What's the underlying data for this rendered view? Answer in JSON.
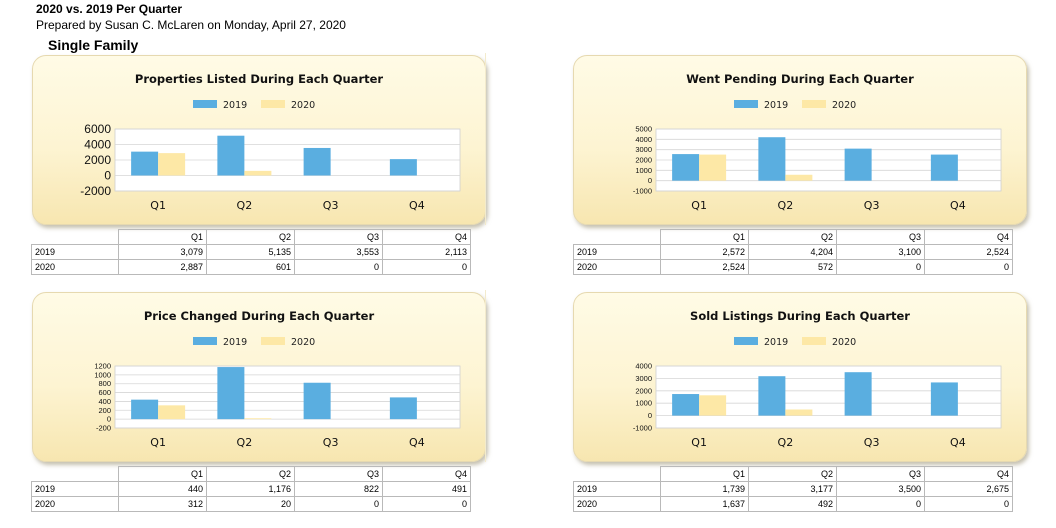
{
  "header": {
    "title": "2020 vs. 2019 Per Quarter",
    "prepared": "Prepared by Susan C. McLaren on Monday, April 27, 2020",
    "section": "Single Family"
  },
  "colors": {
    "series_2019": "#5aaee0",
    "series_2020": "#fde8a6"
  },
  "charts": [
    {
      "chart_data": {
        "type": "bar",
        "title": "Properties Listed During Each Quarter",
        "categories": [
          "Q1",
          "Q2",
          "Q3",
          "Q4"
        ],
        "series": [
          {
            "name": "2019",
            "values": [
              3079,
              5135,
              3553,
              2113
            ]
          },
          {
            "name": "2020",
            "values": [
              2887,
              601,
              0,
              0
            ]
          }
        ],
        "ylim": [
          -2000,
          6000
        ],
        "yticks": [
          "6000",
          "4000",
          "2000",
          "0",
          "-2000"
        ],
        "ytick_values": [
          6000,
          4000,
          2000,
          0,
          -2000
        ],
        "legend": "top",
        "grid": true
      },
      "table": {
        "columns": [
          "Q1",
          "Q2",
          "Q3",
          "Q4"
        ],
        "rows": [
          {
            "label": "2019",
            "values": [
              "3,079",
              "5,135",
              "3,553",
              "2,113"
            ]
          },
          {
            "label": "2020",
            "values": [
              "2,887",
              "601",
              "0",
              "0"
            ]
          }
        ]
      }
    },
    {
      "chart_data": {
        "type": "bar",
        "title": "Went Pending During Each Quarter",
        "categories": [
          "Q1",
          "Q2",
          "Q3",
          "Q4"
        ],
        "series": [
          {
            "name": "2019",
            "values": [
              2572,
              4204,
              3100,
              2524
            ]
          },
          {
            "name": "2020",
            "values": [
              2524,
              572,
              0,
              0
            ]
          }
        ],
        "ylim": [
          -1000,
          5000
        ],
        "yticks": [
          "5000",
          "4000",
          "3000",
          "2000",
          "1000",
          "0",
          "-1000"
        ],
        "ytick_values": [
          5000,
          4000,
          3000,
          2000,
          1000,
          0,
          -1000
        ],
        "legend": "top",
        "grid": true
      },
      "table": {
        "columns": [
          "Q1",
          "Q2",
          "Q3",
          "Q4"
        ],
        "rows": [
          {
            "label": "2019",
            "values": [
              "2,572",
              "4,204",
              "3,100",
              "2,524"
            ]
          },
          {
            "label": "2020",
            "values": [
              "2,524",
              "572",
              "0",
              "0"
            ]
          }
        ]
      }
    },
    {
      "chart_data": {
        "type": "bar",
        "title": "Price Changed During Each Quarter",
        "categories": [
          "Q1",
          "Q2",
          "Q3",
          "Q4"
        ],
        "series": [
          {
            "name": "2019",
            "values": [
              440,
              1176,
              822,
              491
            ]
          },
          {
            "name": "2020",
            "values": [
              312,
              20,
              0,
              0
            ]
          }
        ],
        "ylim": [
          -200,
          1200
        ],
        "yticks": [
          "1200",
          "1000",
          "800",
          "600",
          "400",
          "200",
          "0",
          "-200"
        ],
        "ytick_values": [
          1200,
          1000,
          800,
          600,
          400,
          200,
          0,
          -200
        ],
        "legend": "top",
        "grid": true
      },
      "table": {
        "columns": [
          "Q1",
          "Q2",
          "Q3",
          "Q4"
        ],
        "rows": [
          {
            "label": "2019",
            "values": [
              "440",
              "1,176",
              "822",
              "491"
            ]
          },
          {
            "label": "2020",
            "values": [
              "312",
              "20",
              "0",
              "0"
            ]
          }
        ]
      }
    },
    {
      "chart_data": {
        "type": "bar",
        "title": "Sold Listings During Each Quarter",
        "categories": [
          "Q1",
          "Q2",
          "Q3",
          "Q4"
        ],
        "series": [
          {
            "name": "2019",
            "values": [
              1739,
              3177,
              3500,
              2675
            ]
          },
          {
            "name": "2020",
            "values": [
              1637,
              492,
              0,
              0
            ]
          }
        ],
        "ylim": [
          -1000,
          4000
        ],
        "yticks": [
          "4000",
          "3000",
          "2000",
          "1000",
          "0",
          "-1000"
        ],
        "ytick_values": [
          4000,
          3000,
          2000,
          1000,
          0,
          -1000
        ],
        "legend": "top",
        "grid": true
      },
      "table": {
        "columns": [
          "Q1",
          "Q2",
          "Q3",
          "Q4"
        ],
        "rows": [
          {
            "label": "2019",
            "values": [
              "1,739",
              "3,177",
              "3,500",
              "2,675"
            ]
          },
          {
            "label": "2020",
            "values": [
              "1,637",
              "492",
              "0",
              "0"
            ]
          }
        ]
      }
    }
  ]
}
